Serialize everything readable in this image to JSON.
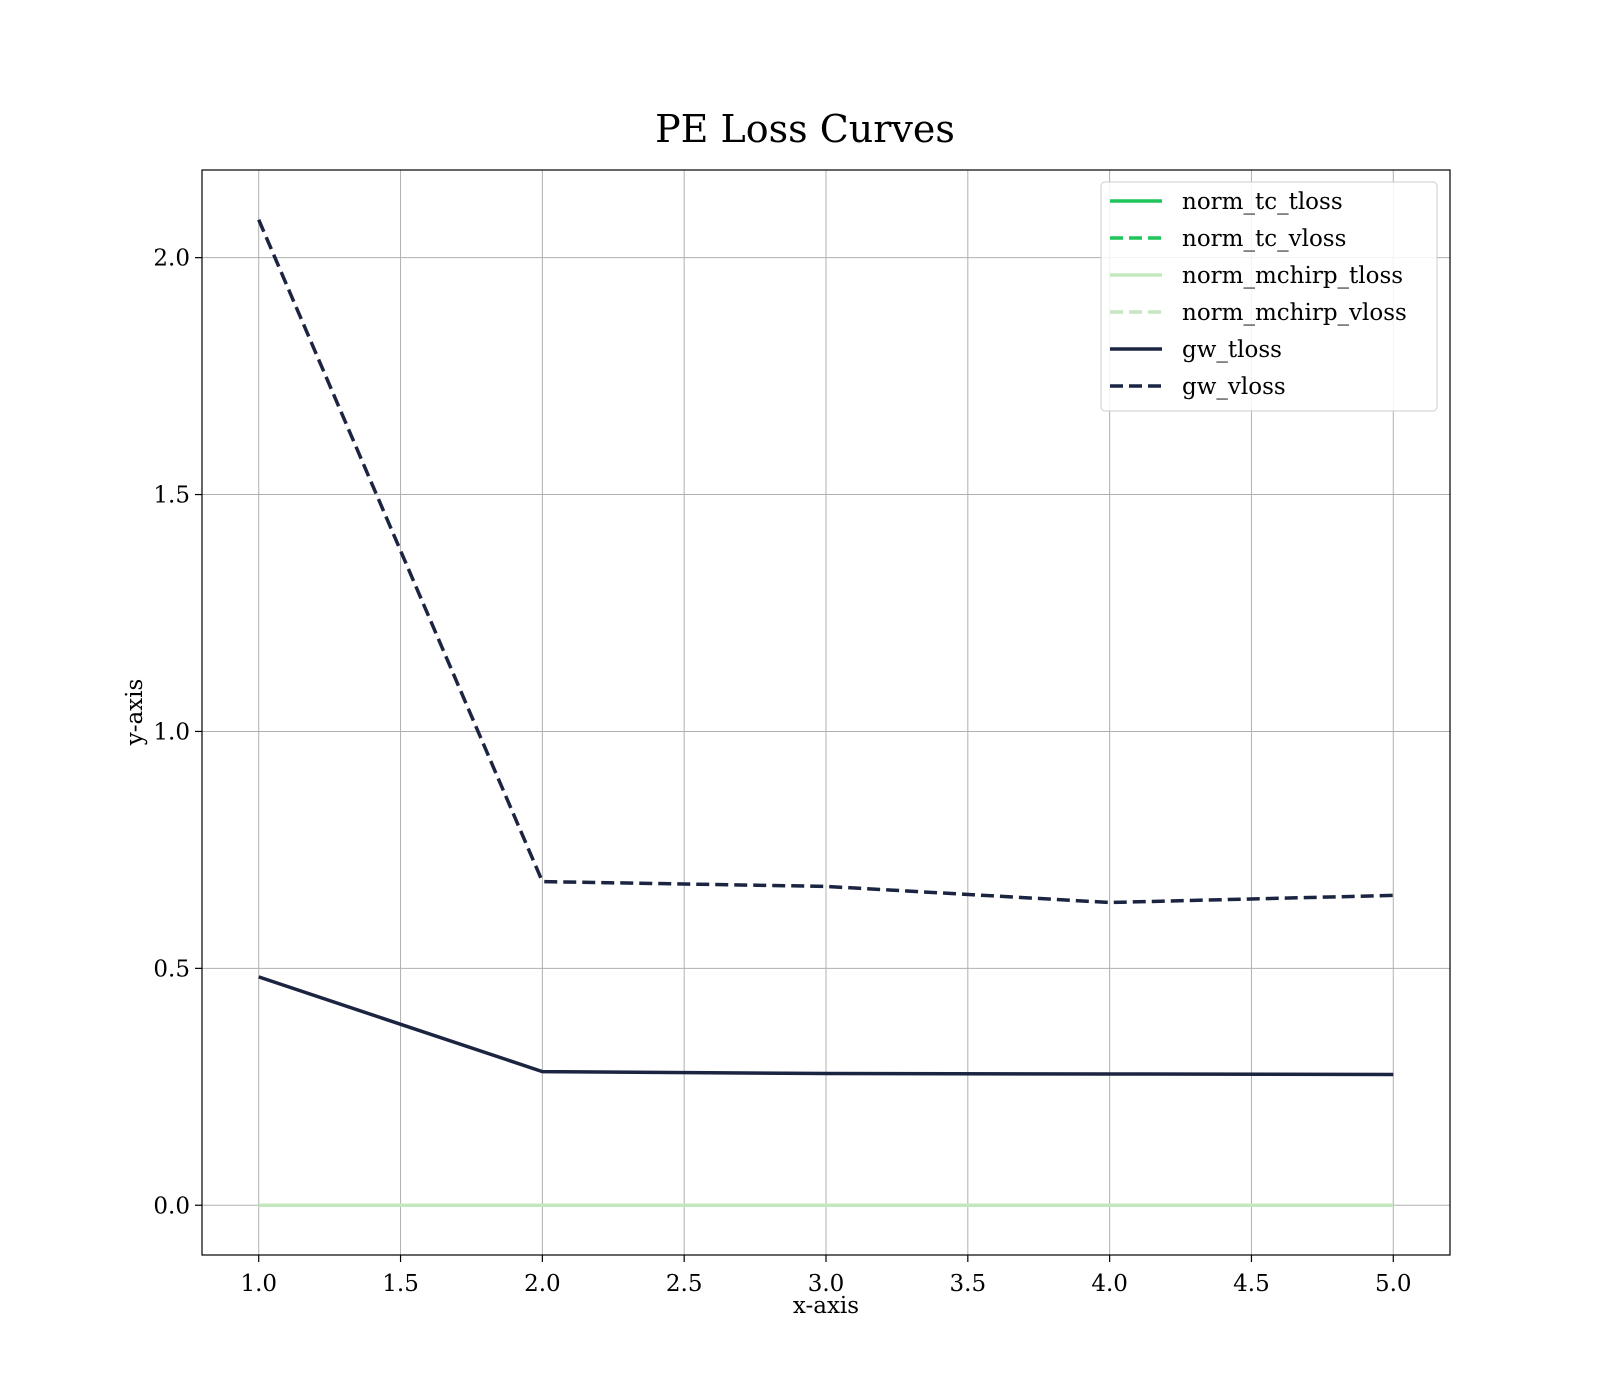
{
  "chart_data": {
    "type": "line",
    "title": "PE Loss Curves",
    "xlabel": "x-axis",
    "ylabel": "y-axis",
    "xlim": [
      0.8,
      5.2
    ],
    "ylim": [
      -0.105,
      2.185
    ],
    "xticks": [
      1.0,
      1.5,
      2.0,
      2.5,
      3.0,
      3.5,
      4.0,
      4.5,
      5.0
    ],
    "xtick_labels": [
      "1.0",
      "1.5",
      "2.0",
      "2.5",
      "3.0",
      "3.5",
      "4.0",
      "4.5",
      "5.0"
    ],
    "yticks": [
      0.0,
      0.5,
      1.0,
      1.5,
      2.0
    ],
    "ytick_labels": [
      "0.0",
      "0.5",
      "1.0",
      "1.5",
      "2.0"
    ],
    "grid": true,
    "legend_position": "top-right",
    "x": [
      1,
      2,
      3,
      4,
      5
    ],
    "series": [
      {
        "name": "norm_tc_tloss",
        "values": [
          0.0,
          0.0,
          0.0,
          0.0,
          0.0
        ],
        "color": "#1fc45a",
        "style": "solid"
      },
      {
        "name": "norm_tc_vloss",
        "values": [
          0.0,
          0.0,
          0.0,
          0.0,
          0.0
        ],
        "color": "#1fc45a",
        "style": "dashed"
      },
      {
        "name": "norm_mchirp_tloss",
        "values": [
          0.0,
          0.0,
          0.0,
          0.0,
          0.0
        ],
        "color": "#c4e8bd",
        "style": "solid"
      },
      {
        "name": "norm_mchirp_vloss",
        "values": [
          0.0,
          0.0,
          0.0,
          0.0,
          0.0
        ],
        "color": "#c4e8bd",
        "style": "dashed"
      },
      {
        "name": "gw_tloss",
        "values": [
          0.482,
          0.282,
          0.278,
          0.277,
          0.276
        ],
        "color": "#1b2440",
        "style": "solid"
      },
      {
        "name": "gw_vloss",
        "values": [
          2.08,
          0.683,
          0.673,
          0.639,
          0.654
        ],
        "color": "#1b2440",
        "style": "dashed"
      }
    ]
  }
}
